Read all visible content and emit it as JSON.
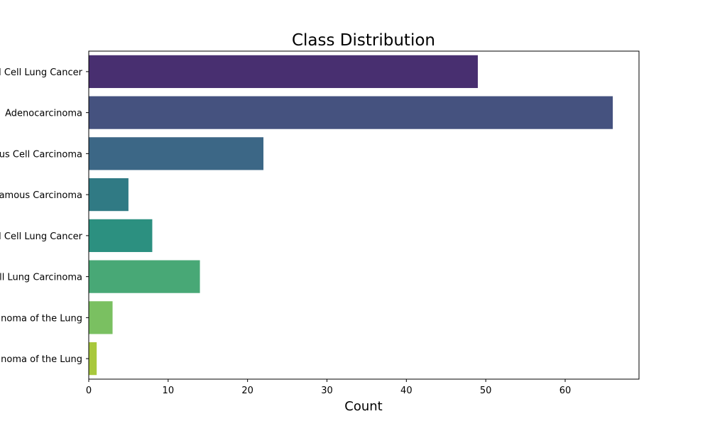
{
  "chart_data": {
    "type": "bar",
    "orientation": "horizontal",
    "title": "Class Distribution",
    "xlabel": "Count",
    "ylabel": "",
    "xlim": [
      0,
      69.3
    ],
    "xticks": [
      0,
      10,
      20,
      30,
      40,
      50,
      60
    ],
    "grid": false,
    "categories": [
      "Small Cell Lung Cancer",
      "Adenocarcinoma",
      "Squamous Cell Carcinoma",
      "Adenosquamous Carcinoma",
      "Non-Small Cell Lung Cancer",
      "Large Cell Lung Carcinoma",
      "Carcinoid Tumor / Carcinoma of the Lung",
      "Sarcomatoid Carcinoma of the Lung"
    ],
    "values": [
      49,
      66,
      22,
      5,
      8,
      14,
      3,
      1
    ],
    "colors": [
      "#482f70",
      "#45527f",
      "#3c6786",
      "#307a84",
      "#2c9080",
      "#48a876",
      "#7ac061",
      "#a8c83c"
    ]
  }
}
